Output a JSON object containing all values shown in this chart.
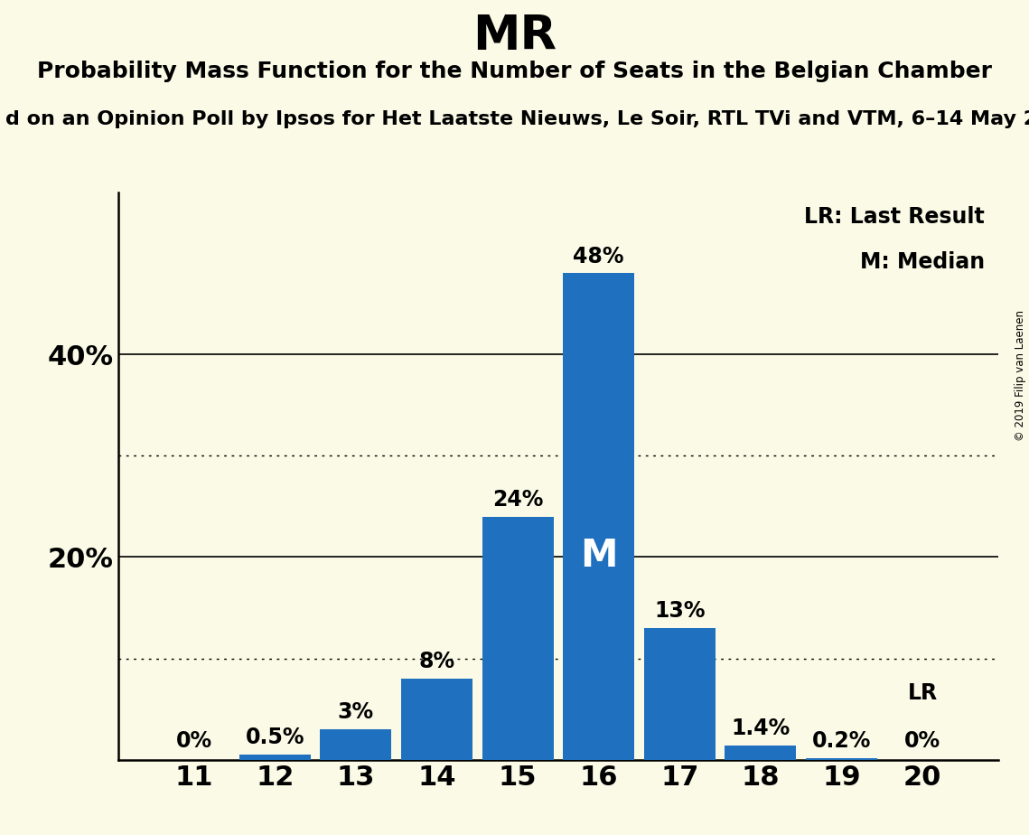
{
  "title": "MR",
  "subtitle": "Probability Mass Function for the Number of Seats in the Belgian Chamber",
  "source_line": "d on an Opinion Poll by Ipsos for Het Laatste Nieuws, Le Soir, RTL TVi and VTM, 6–14 May 2",
  "copyright": "© 2019 Filip van Laenen",
  "categories": [
    11,
    12,
    13,
    14,
    15,
    16,
    17,
    18,
    19,
    20
  ],
  "values": [
    0.0,
    0.5,
    3.0,
    8.0,
    24.0,
    48.0,
    13.0,
    1.4,
    0.2,
    0.0
  ],
  "bar_labels": [
    "0%",
    "0.5%",
    "3%",
    "8%",
    "24%",
    "48%",
    "13%",
    "1.4%",
    "0.2%",
    "0%"
  ],
  "bar_color": "#2070C0",
  "background_color": "#FAFAE6",
  "median_bar": 16,
  "lr_bar": 20,
  "lr_label": "LR",
  "median_label": "M",
  "legend_lr": "LR: Last Result",
  "legend_m": "M: Median",
  "dotted_lines": [
    10,
    30
  ],
  "solid_lines": [
    20,
    40
  ],
  "ylim": [
    0,
    56
  ],
  "title_fontsize": 38,
  "subtitle_fontsize": 18,
  "source_fontsize": 16,
  "bar_label_fontsize": 17,
  "axis_tick_fontsize": 22,
  "legend_fontsize": 17,
  "median_fontsize": 30
}
